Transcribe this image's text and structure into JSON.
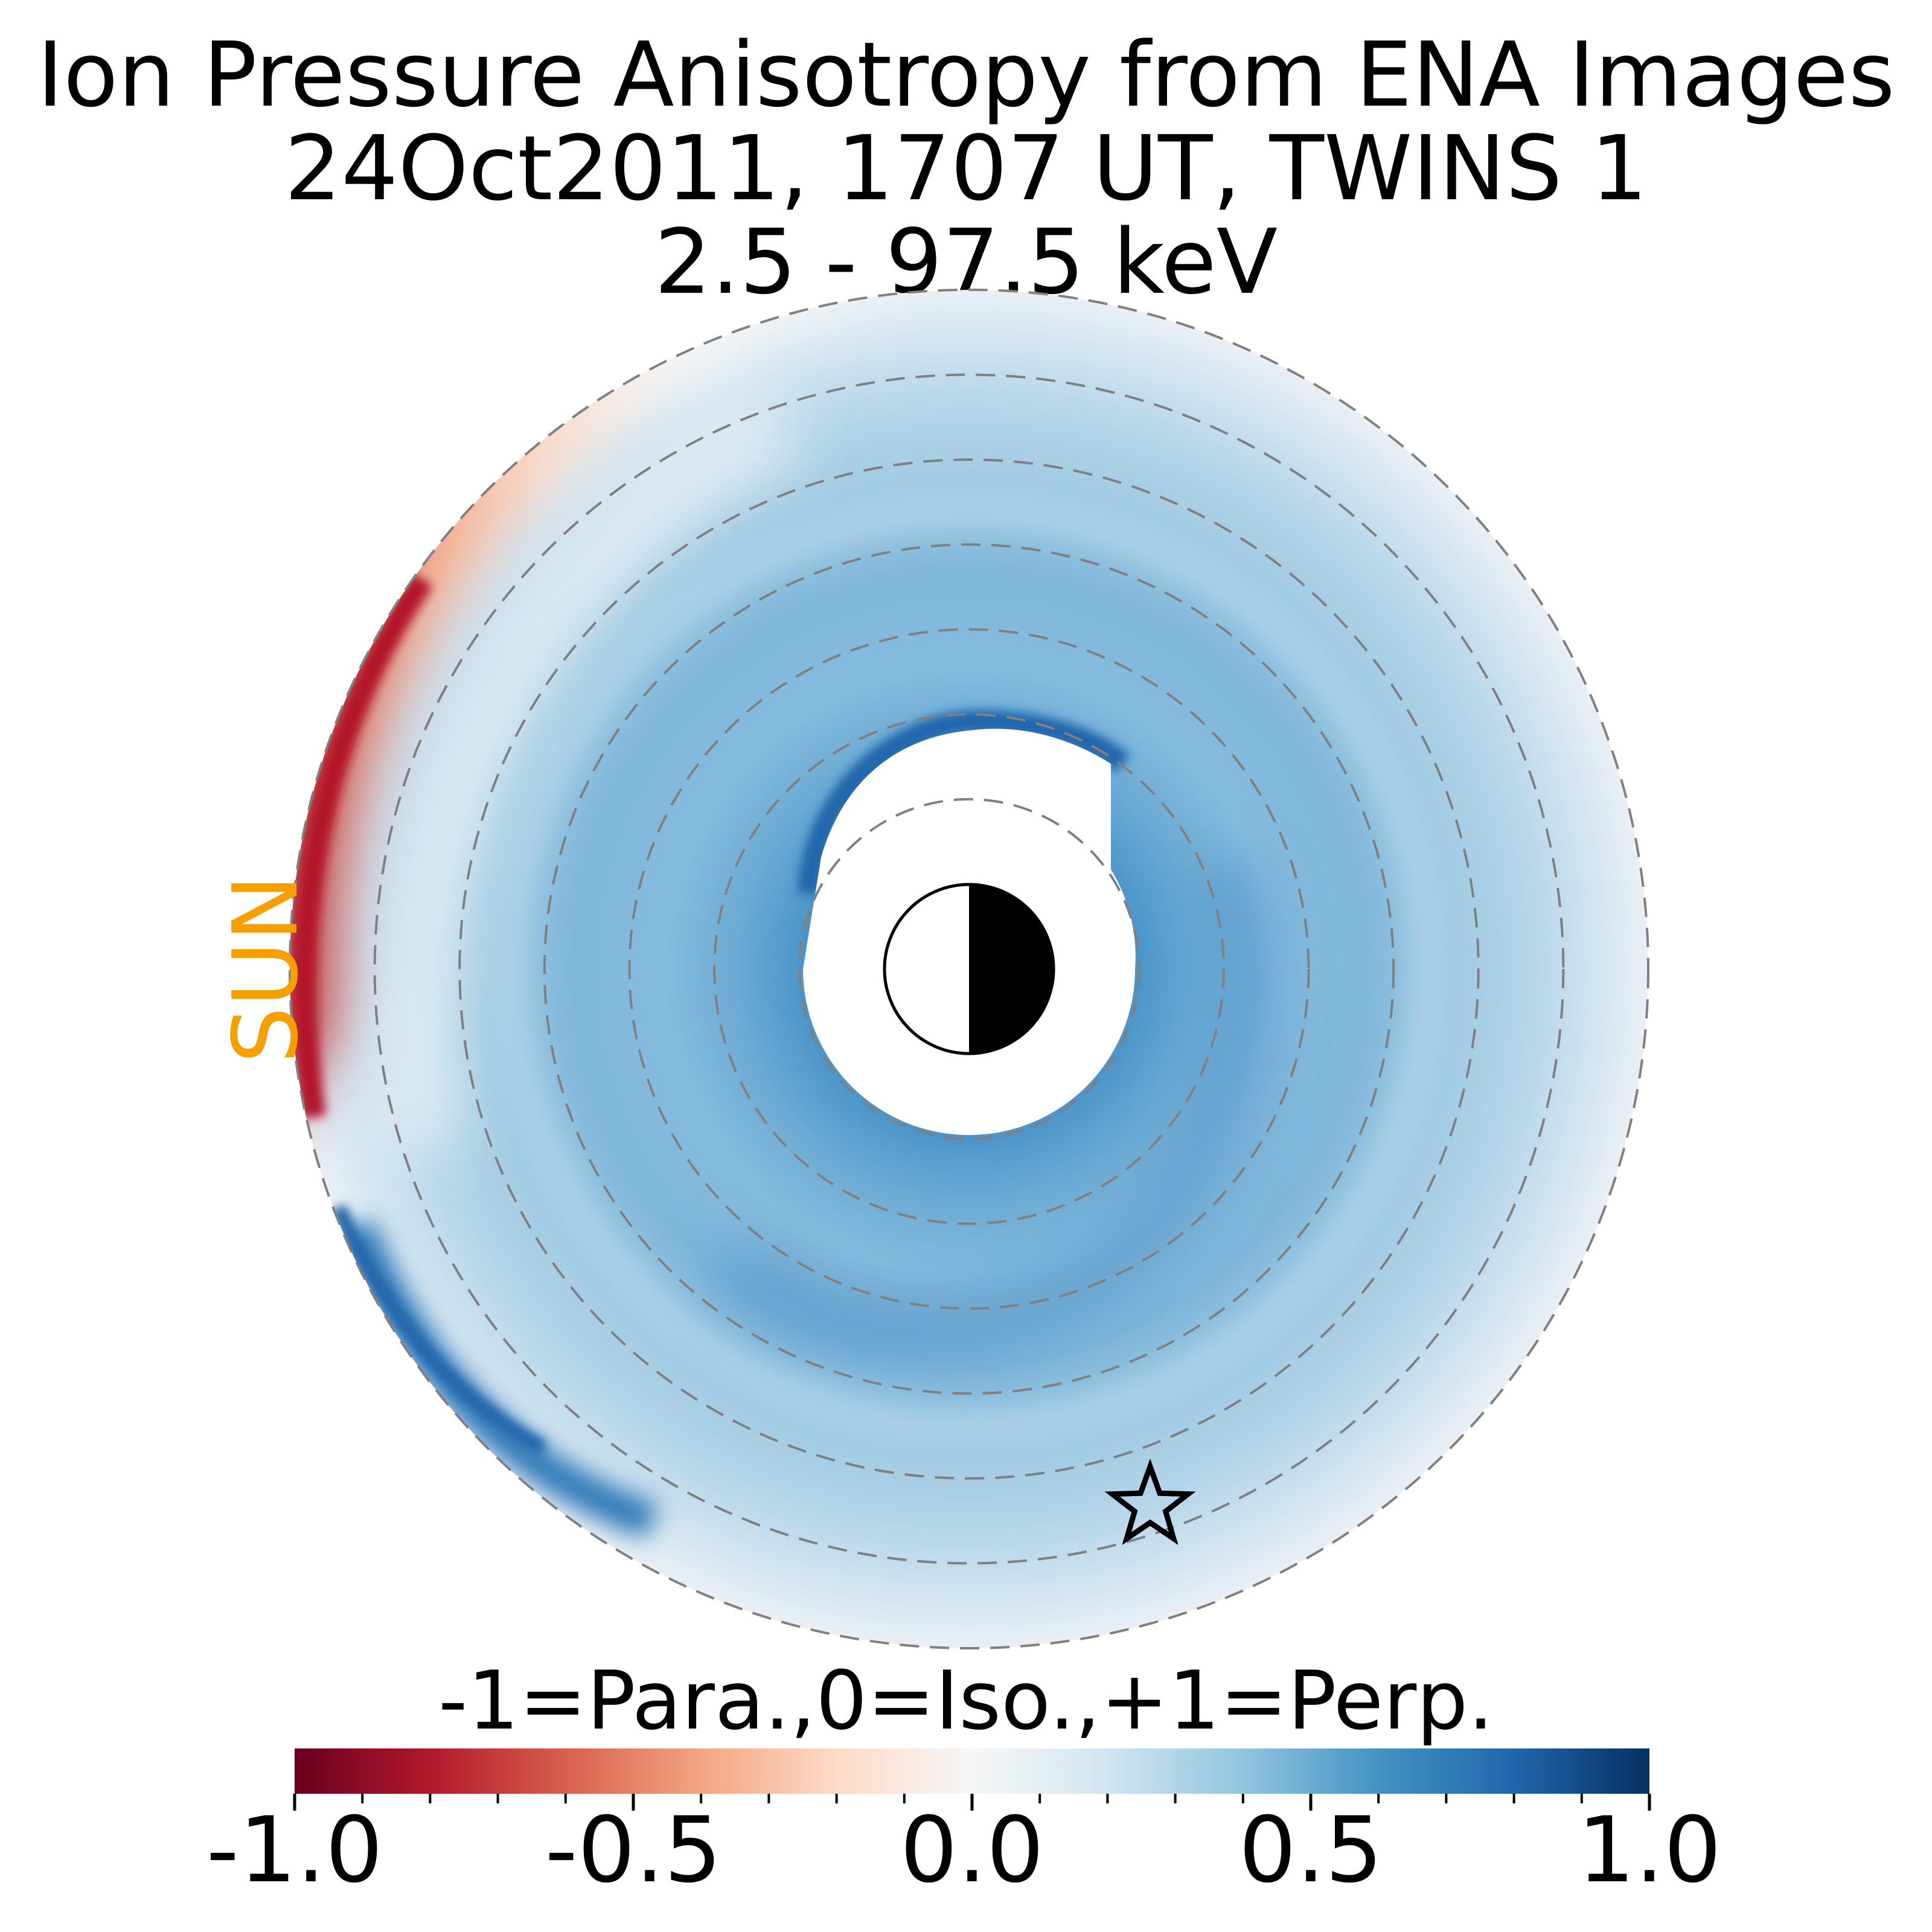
{
  "title": {
    "line1": "Ion Pressure Anisotropy from  ENA Images",
    "line2": "24Oct2011, 1707 UT,  TWINS 1",
    "line3": "2.5 - 97.5 keV"
  },
  "sun_label": "SUN",
  "colorbar": {
    "label": "-1=Para.,0=Iso.,+1=Perp.",
    "range": [
      -1.0,
      1.0
    ],
    "ticks": [
      "-1.0",
      "-0.5",
      "0.0",
      "0.5",
      "1.0"
    ],
    "colormap": "RdBu",
    "stops": [
      "#67001f",
      "#b2182b",
      "#d6604d",
      "#f4a582",
      "#fddbc7",
      "#f7f7f7",
      "#d1e5f0",
      "#92c5de",
      "#4393c3",
      "#2166ac",
      "#053061"
    ]
  },
  "chart_data": {
    "type": "heatmap",
    "projection": "polar equatorial map",
    "title": "Ion Pressure Anisotropy from  ENA Images 24Oct2011, 1707 UT,  TWINS 1 2.5 - 97.5 keV",
    "dashed_circles_re": [
      2,
      4,
      6,
      8,
      10,
      12,
      14,
      16
    ],
    "r_range_re": [
      2,
      16
    ],
    "sun_direction": "left",
    "spacecraft_marker": "star",
    "regions": [
      {
        "area": "dayside outer ring (dawn-noon)",
        "value": -0.9
      },
      {
        "area": "dayside r 12-15",
        "value": -0.3
      },
      {
        "area": "inner ring r 3-6",
        "value": 0.45
      },
      {
        "area": "inner edge near noon/pre-noon",
        "value": 0.95
      },
      {
        "area": "nightside r 6-14",
        "value": 0.35
      },
      {
        "area": "dusk/dawn band r 14-15",
        "value": 0.7
      },
      {
        "area": "outer edge night side",
        "value": 0.05
      }
    ]
  }
}
